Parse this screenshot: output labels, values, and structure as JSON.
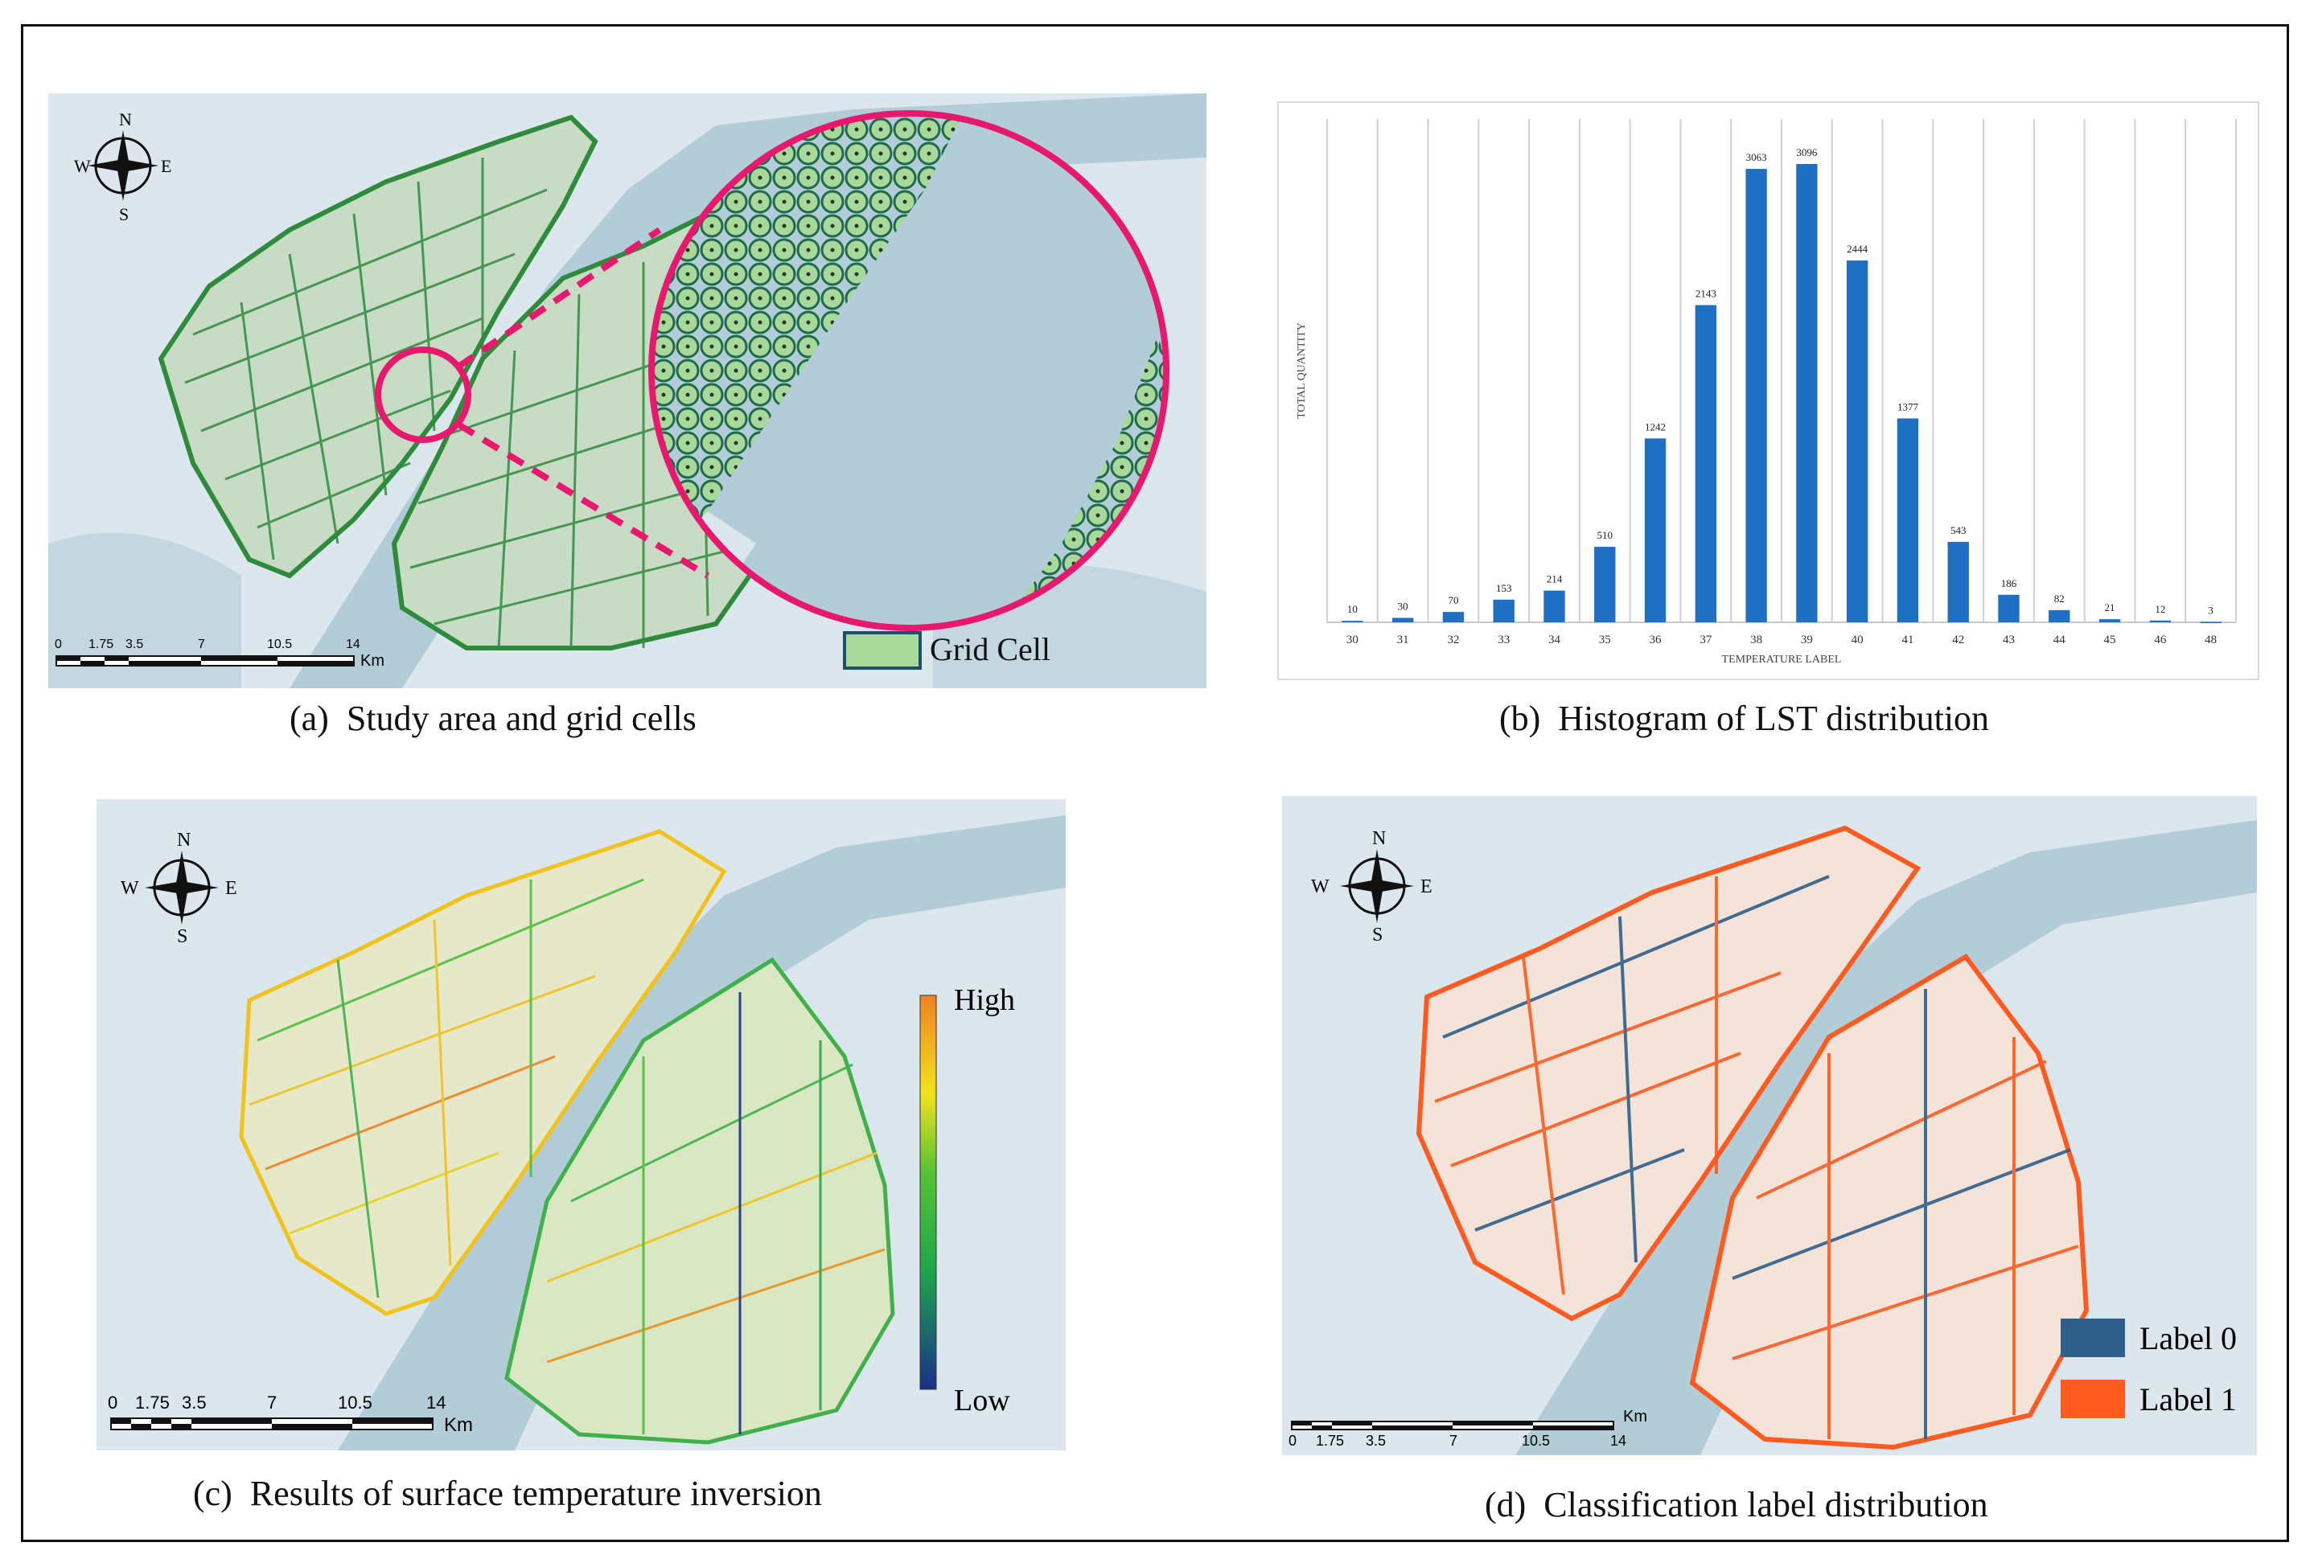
{
  "panels": {
    "a": {
      "caption": "(a)  Study area and grid cells",
      "legend_label": "Grid Cell",
      "legend_color": "#a9d89b",
      "legend_border": "#1f4f6b"
    },
    "b": {
      "caption": "(b)  Histogram of LST distribution"
    },
    "c": {
      "caption": "(c)  Results of surface temperature inversion",
      "ramp_high": "High",
      "ramp_low": "Low"
    },
    "d": {
      "caption": "(d)  Classification label distribution",
      "label0": "Label 0",
      "label1": "Label 1",
      "label0_color": "#2e5f8a",
      "label1_color": "#ff5a1f"
    }
  },
  "compass": {
    "n": "N",
    "s": "S",
    "e": "E",
    "w": "W"
  },
  "scalebar": {
    "ticks": [
      "0",
      "1.75",
      "3.5",
      "7",
      "10.5",
      "14"
    ],
    "unit": "Km"
  },
  "colors": {
    "water": "#b2ccd8",
    "land": "#dbe7ec",
    "road_green": "#2e8b3c",
    "bar": "#1f6fc5",
    "magnifier": "#e8186f"
  },
  "chart_data": {
    "type": "bar",
    "categories": [
      "30",
      "31",
      "32",
      "33",
      "34",
      "35",
      "36",
      "37",
      "38",
      "39",
      "40",
      "41",
      "42",
      "43",
      "44",
      "45",
      "46",
      "48"
    ],
    "values": [
      10,
      30,
      70,
      153,
      214,
      510,
      1242,
      2143,
      3063,
      3096,
      2444,
      1377,
      543,
      186,
      82,
      21,
      12,
      3
    ],
    "xlabel": "TEMPERATURE LABEL",
    "ylabel": "TOTAL QUANTITY",
    "ylim": [
      0,
      3400
    ],
    "grid": "vertical"
  }
}
